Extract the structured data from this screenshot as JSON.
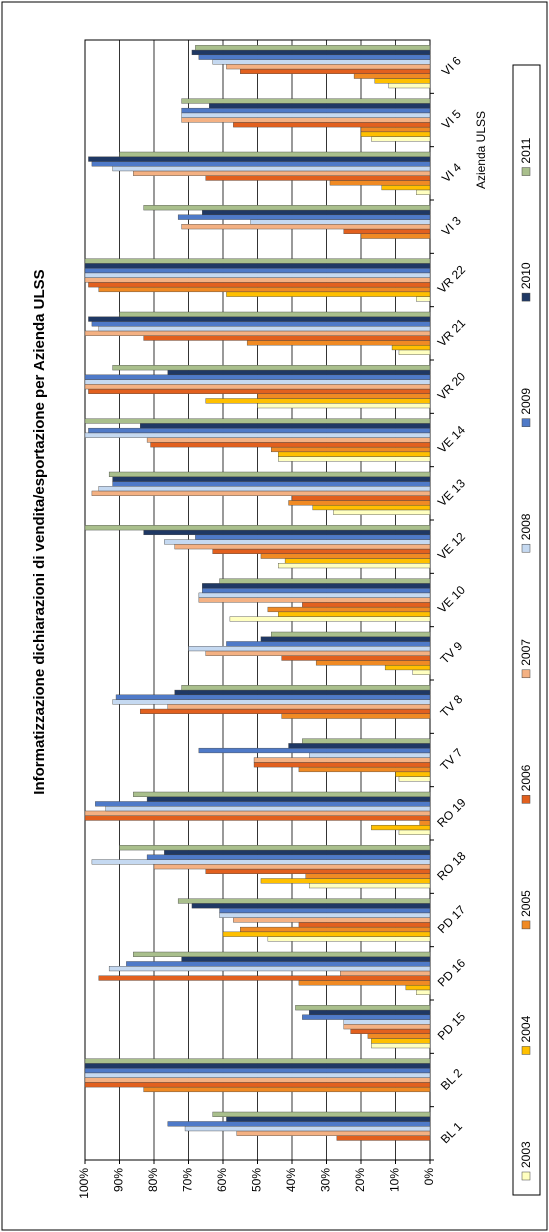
{
  "chart_data": {
    "type": "bar",
    "title": "Informatizzazione dichiarazioni di vendita/esportazione per Azienda ULSS",
    "x_label": "Azienda ULSS",
    "categories": [
      "BL 1",
      "BL 2",
      "PD 15",
      "PD 16",
      "PD 17",
      "RO 18",
      "RO 19",
      "TV 7",
      "TV 8",
      "TV 9",
      "VE 10",
      "VE 12",
      "VE 13",
      "VE 14",
      "VR 20",
      "VR 21",
      "VR 22",
      "VI 3",
      "VI 4",
      "VI 5",
      "VI 6"
    ],
    "series": [
      {
        "name": "2003",
        "color": "#ffffc0",
        "values": [
          0,
          0,
          17,
          4,
          47,
          35,
          9,
          9,
          0,
          5,
          58,
          44,
          28,
          44,
          50,
          9,
          4,
          0,
          4,
          17,
          12
        ]
      },
      {
        "name": "2004",
        "color": "#ffc000",
        "values": [
          0,
          0,
          17,
          7,
          60,
          49,
          17,
          10,
          0,
          13,
          44,
          42,
          34,
          44,
          65,
          11,
          59,
          0,
          14,
          20,
          16
        ]
      },
      {
        "name": "2005",
        "color": "#f08a24",
        "values": [
          0,
          83,
          18,
          38,
          55,
          36,
          3,
          38,
          43,
          33,
          47,
          49,
          41,
          46,
          50,
          53,
          96,
          20,
          29,
          20,
          22
        ]
      },
      {
        "name": "2006",
        "color": "#e2601e",
        "values": [
          27,
          100,
          23,
          96,
          38,
          65,
          100,
          51,
          84,
          43,
          37,
          63,
          40,
          81,
          99,
          83,
          99,
          25,
          65,
          57,
          55
        ]
      },
      {
        "name": "2007",
        "color": "#f4b183",
        "values": [
          56,
          100,
          25,
          26,
          57,
          80,
          100,
          51,
          76,
          65,
          67,
          74,
          98,
          82,
          100,
          100,
          100,
          72,
          86,
          72,
          59
        ]
      },
      {
        "name": "2008",
        "color": "#c5d9f1",
        "values": [
          71,
          100,
          25,
          93,
          61,
          98,
          94,
          35,
          92,
          70,
          67,
          77,
          96,
          100,
          100,
          96,
          100,
          52,
          92,
          72,
          63
        ]
      },
      {
        "name": "2009",
        "color": "#4f7ac8",
        "values": [
          76,
          100,
          37,
          88,
          61,
          82,
          97,
          67,
          91,
          59,
          66,
          68,
          92,
          99,
          100,
          98,
          100,
          73,
          98,
          72,
          67
        ]
      },
      {
        "name": "2010",
        "color": "#1f3864",
        "values": [
          59,
          100,
          35,
          72,
          69,
          77,
          82,
          41,
          74,
          49,
          66,
          83,
          92,
          84,
          76,
          99,
          100,
          66,
          99,
          64,
          69
        ]
      },
      {
        "name": "2011",
        "color": "#a9bf8c",
        "values": [
          63,
          100,
          39,
          86,
          73,
          90,
          86,
          37,
          72,
          46,
          61,
          100,
          93,
          100,
          92,
          90,
          100,
          83,
          90,
          72,
          68
        ]
      }
    ],
    "ylim": [
      0,
      100
    ],
    "yticks": [
      {
        "value": 0,
        "label": "0%"
      },
      {
        "value": 10,
        "label": "10%"
      },
      {
        "value": 20,
        "label": "20%"
      },
      {
        "value": 30,
        "label": "30%"
      },
      {
        "value": 40,
        "label": "40%"
      },
      {
        "value": 50,
        "label": "50%"
      },
      {
        "value": 60,
        "label": "60%"
      },
      {
        "value": 70,
        "label": "70%"
      },
      {
        "value": 80,
        "label": "80%"
      },
      {
        "value": 90,
        "label": "90%"
      },
      {
        "value": 100,
        "label": "100%"
      }
    ],
    "grid": true,
    "legend": "bottom"
  }
}
